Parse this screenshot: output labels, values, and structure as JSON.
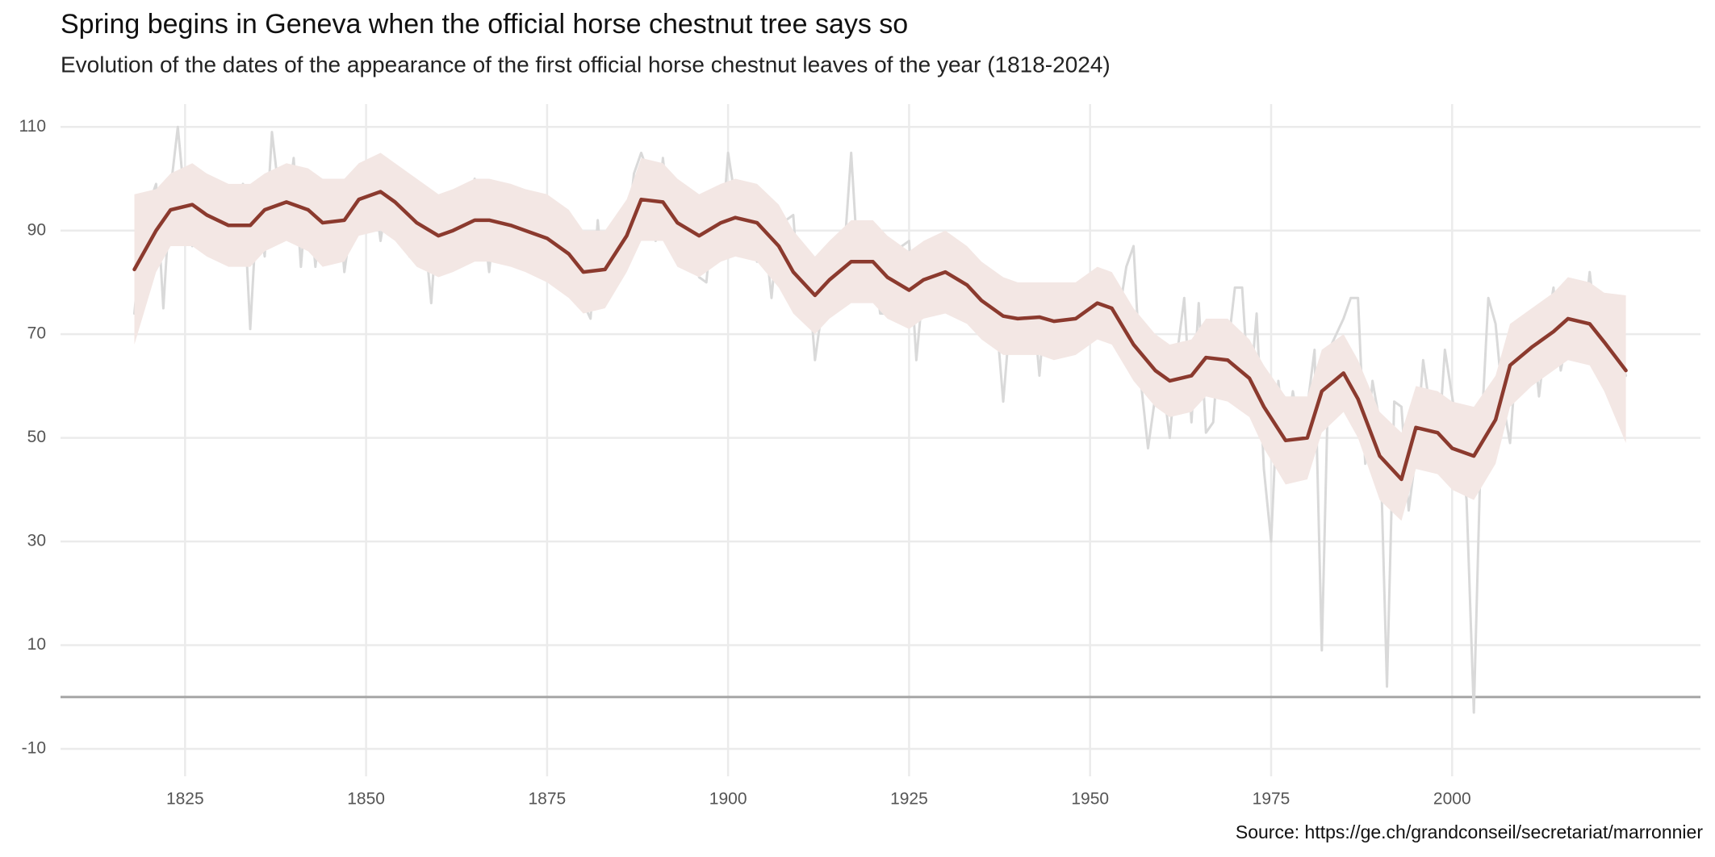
{
  "chart_data": {
    "type": "line",
    "title": "Spring begins in Geneva when the official horse chestnut tree says so",
    "subtitle": "Evolution of the dates of the appearance of the first official horse chestnut leaves of the year (1818-2024)",
    "source": "Source: https://ge.ch/grandconseil/secretariat/marronnier",
    "xlim": [
      1807.8,
      2034.3
    ],
    "ylim": [
      -15.3,
      114.4
    ],
    "xticks": [
      1825,
      1850,
      1875,
      1900,
      1925,
      1950,
      1975,
      2000
    ],
    "yticks": [
      -10,
      10,
      30,
      50,
      70,
      90,
      110
    ],
    "grid": true,
    "hline": 0,
    "hline_color": "#a6a6a6",
    "series": [
      {
        "color": "#d9d9d9",
        "x": [
          1818,
          1819,
          1820,
          1821,
          1822,
          1823,
          1824,
          1825,
          1826,
          1827,
          1828,
          1829,
          1830,
          1831,
          1832,
          1833,
          1834,
          1835,
          1836,
          1837,
          1838,
          1839,
          1840,
          1841,
          1842,
          1843,
          1844,
          1845,
          1846,
          1847,
          1848,
          1849,
          1850,
          1851,
          1852,
          1853,
          1854,
          1855,
          1856,
          1857,
          1858,
          1859,
          1860,
          1861,
          1862,
          1863,
          1864,
          1865,
          1866,
          1867,
          1868,
          1869,
          1870,
          1871,
          1872,
          1873,
          1874,
          1875,
          1876,
          1877,
          1878,
          1879,
          1880,
          1881,
          1882,
          1883,
          1884,
          1885,
          1886,
          1887,
          1888,
          1889,
          1890,
          1891,
          1892,
          1893,
          1894,
          1895,
          1896,
          1897,
          1898,
          1899,
          1900,
          1901,
          1902,
          1903,
          1904,
          1905,
          1906,
          1907,
          1908,
          1909,
          1910,
          1911,
          1912,
          1913,
          1914,
          1915,
          1916,
          1917,
          1918,
          1919,
          1920,
          1921,
          1922,
          1923,
          1924,
          1925,
          1926,
          1927,
          1928,
          1929,
          1930,
          1931,
          1932,
          1933,
          1934,
          1935,
          1936,
          1937,
          1938,
          1939,
          1940,
          1941,
          1942,
          1943,
          1944,
          1945,
          1946,
          1947,
          1948,
          1949,
          1950,
          1951,
          1952,
          1953,
          1954,
          1955,
          1956,
          1957,
          1958,
          1959,
          1960,
          1961,
          1962,
          1963,
          1964,
          1965,
          1966,
          1967,
          1968,
          1969,
          1970,
          1971,
          1972,
          1973,
          1974,
          1975,
          1976,
          1977,
          1978,
          1979,
          1980,
          1981,
          1982,
          1983,
          1984,
          1985,
          1986,
          1987,
          1988,
          1989,
          1990,
          1991,
          1992,
          1993,
          1994,
          1995,
          1996,
          1997,
          1998,
          1999,
          2000,
          2001,
          2002,
          2003,
          2004,
          2005,
          2006,
          2007,
          2008,
          2009,
          2010,
          2011,
          2012,
          2013,
          2014,
          2015,
          2016,
          2017,
          2018,
          2019,
          2020,
          2021,
          2022,
          2023,
          2024
        ],
        "values": [
          74,
          89,
          95,
          99,
          75,
          98,
          110,
          95,
          87,
          98,
          94,
          95,
          87,
          89,
          94,
          99,
          71,
          96,
          85,
          109,
          97,
          92,
          104,
          83,
          100,
          83,
          96,
          90,
          99,
          82,
          92,
          90,
          96,
          99,
          88,
          97,
          92,
          101,
          85,
          95,
          91,
          76,
          96,
          85,
          89,
          93,
          88,
          100,
          94,
          82,
          96,
          99,
          85,
          88,
          85,
          87,
          94,
          86,
          85,
          92,
          85,
          78,
          76,
          73,
          92,
          76,
          78,
          90,
          88,
          101,
          105,
          101,
          88,
          104,
          90,
          95,
          85,
          90,
          81,
          80,
          95,
          86,
          105,
          96,
          85,
          98,
          84,
          90,
          77,
          92,
          92,
          93,
          74,
          83,
          65,
          75,
          79,
          82,
          85,
          105,
          82,
          81,
          86,
          74,
          74,
          80,
          87,
          88,
          65,
          80,
          76,
          87,
          84,
          81,
          85,
          80,
          73,
          81,
          81,
          74,
          57,
          74,
          79,
          77,
          78,
          62,
          79,
          69,
          74,
          78,
          68,
          76,
          70,
          74,
          79,
          77,
          74,
          83,
          87,
          61,
          48,
          58,
          61,
          50,
          66,
          77,
          53,
          76,
          51,
          53,
          72,
          67,
          79,
          79,
          57,
          74,
          44,
          30,
          61,
          48,
          59,
          51,
          56,
          67,
          9,
          67,
          70,
          73,
          77,
          77,
          45,
          61,
          53,
          2,
          57,
          56,
          36,
          47,
          65,
          55,
          46,
          67,
          58,
          49,
          38,
          -3,
          50,
          77,
          72,
          57,
          49,
          68,
          64,
          73,
          58,
          70,
          79,
          63,
          70,
          75,
          69,
          82,
          70,
          67,
          70,
          66,
          62
        ]
      },
      {
        "color": "#8b3a2e",
        "band_color": "#f3e7e4",
        "x": [
          1818,
          1821,
          1823,
          1826,
          1828,
          1831,
          1834,
          1836,
          1839,
          1842,
          1844,
          1847,
          1849,
          1852,
          1854,
          1857,
          1860,
          1862,
          1865,
          1867,
          1870,
          1872,
          1875,
          1878,
          1880,
          1883,
          1886,
          1888,
          1891,
          1893,
          1896,
          1899,
          1901,
          1904,
          1907,
          1909,
          1912,
          1914,
          1917,
          1920,
          1922,
          1925,
          1927,
          1930,
          1933,
          1935,
          1938,
          1940,
          1943,
          1945,
          1948,
          1951,
          1953,
          1956,
          1959,
          1961,
          1964,
          1966,
          1969,
          1972,
          1974,
          1977,
          1980,
          1982,
          1985,
          1987,
          1990,
          1993,
          1995,
          1998,
          2000,
          2003,
          2006,
          2008,
          2011,
          2014,
          2016,
          2019,
          2021,
          2024
        ],
        "values": [
          82.5,
          90,
          94,
          95,
          93,
          91,
          91,
          94,
          95.5,
          94,
          91.5,
          92,
          96,
          97.5,
          95.5,
          91.5,
          89,
          90,
          92,
          92,
          91,
          90,
          88.5,
          85.5,
          82,
          82.5,
          89,
          96,
          95.5,
          91.5,
          89,
          91.5,
          92.5,
          91.5,
          87,
          82,
          77.5,
          80.5,
          84,
          84,
          81,
          78.5,
          80.5,
          82,
          79.5,
          76.5,
          73.5,
          73,
          73.3,
          72.5,
          73,
          76,
          75,
          68,
          63,
          61,
          62,
          65.5,
          65,
          61.5,
          56,
          49.5,
          50,
          59,
          62.5,
          57.5,
          46.5,
          42,
          52,
          51,
          48,
          46.5,
          53.5,
          64,
          67.5,
          70.5,
          73,
          72,
          68.5,
          63
        ],
        "upper": [
          97,
          98,
          101,
          103,
          101,
          99,
          99,
          101,
          103,
          102,
          100,
          100,
          103,
          105,
          103,
          100,
          97,
          98,
          100,
          100,
          99,
          98,
          97,
          94,
          90,
          90,
          96,
          104,
          103,
          100,
          97,
          99,
          100,
          99,
          95,
          90,
          85,
          88,
          92,
          92,
          89,
          86,
          88,
          90,
          87,
          84,
          81,
          80,
          80,
          80,
          80,
          83,
          82,
          75,
          70,
          68,
          69,
          73,
          73,
          69,
          64,
          58,
          58,
          67,
          70,
          65,
          55,
          51,
          60,
          59,
          57,
          56,
          62,
          72,
          75,
          78,
          81,
          80,
          78,
          77.5
        ],
        "lower": [
          68,
          82,
          87,
          87,
          85,
          83,
          83,
          86,
          88,
          86,
          83,
          84,
          89,
          90,
          88,
          83,
          81,
          82,
          84,
          84,
          83,
          82,
          80,
          77,
          74,
          75,
          82,
          88,
          88,
          83,
          81,
          84,
          85,
          84,
          79,
          74,
          70,
          73,
          76,
          76,
          73,
          71,
          73,
          74,
          72,
          69,
          66,
          66,
          66,
          65,
          66,
          69,
          68,
          61,
          56,
          54,
          55,
          58,
          57,
          54,
          48,
          41,
          42,
          51,
          55,
          50,
          38,
          34,
          44,
          43,
          40,
          38,
          45,
          56,
          60,
          63,
          65,
          64,
          59,
          49
        ]
      }
    ]
  }
}
